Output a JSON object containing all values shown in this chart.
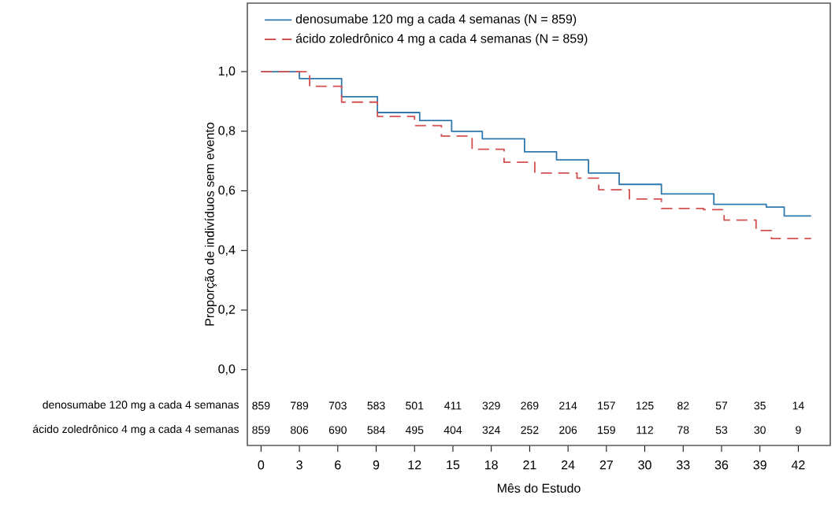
{
  "chart_data": {
    "type": "step",
    "xlabel": "Mês do Estudo",
    "ylabel": "Proporção de indivíduos sem evento",
    "xlim": [
      -1.07,
      44.5
    ],
    "ylim": [
      -0.254,
      1.23
    ],
    "xticks": [
      0,
      3,
      6,
      9,
      12,
      15,
      18,
      21,
      24,
      27,
      30,
      33,
      36,
      39,
      42
    ],
    "yticks": [
      {
        "value": 0,
        "label": "0,0"
      },
      {
        "value": 0.2,
        "label": "0,2"
      },
      {
        "value": 0.4,
        "label": "0,4"
      },
      {
        "value": 0.6,
        "label": "0,6"
      },
      {
        "value": 0.8,
        "label": "0,8"
      },
      {
        "value": 1,
        "label": "1,0"
      }
    ],
    "legend": "top left",
    "grid": false,
    "series": [
      {
        "name": "denosumabe 120 mg a cada 4 semanas (N = 859)",
        "color": "#2f78ad",
        "line_style": "solid",
        "x": [
          0,
          3.0,
          6.3,
          9.1,
          12.4,
          14.9,
          17.3,
          20.6,
          23.1,
          25.6,
          28.0,
          31.3,
          35.4,
          39.5,
          40.9,
          43.0
        ],
        "values": [
          1.0,
          0.977,
          0.916,
          0.863,
          0.836,
          0.8,
          0.775,
          0.731,
          0.704,
          0.66,
          0.622,
          0.59,
          0.555,
          0.546,
          0.516,
          0.516
        ]
      },
      {
        "name": "ácido zoledrônico 4 mg a cada 4 semanas (N = 859)",
        "color": "#d2504f",
        "line_style": "dashed",
        "x": [
          0,
          3.8,
          6.3,
          9.1,
          12.0,
          14.1,
          16.5,
          19.0,
          21.4,
          24.7,
          26.4,
          28.8,
          31.3,
          34.6,
          36.2,
          38.7,
          39.9,
          43.0
        ],
        "values": [
          1.0,
          0.951,
          0.898,
          0.85,
          0.819,
          0.784,
          0.74,
          0.696,
          0.66,
          0.643,
          0.604,
          0.573,
          0.541,
          0.537,
          0.502,
          0.467,
          0.44,
          0.44
        ]
      }
    ],
    "annotations": [
      "denosumabe 120 mg a cada 4 semanas",
      "859",
      "789",
      "703",
      "583",
      "501",
      "411",
      "329",
      "269",
      "214",
      "157",
      "125",
      "82",
      "57",
      "35",
      "14",
      "ácido zoledrônico 4 mg a cada 4 semanas",
      "859",
      "806",
      "690",
      "584",
      "495",
      "404",
      "324",
      "252",
      "206",
      "159",
      "112",
      "78",
      "53",
      "30",
      "9"
    ]
  }
}
